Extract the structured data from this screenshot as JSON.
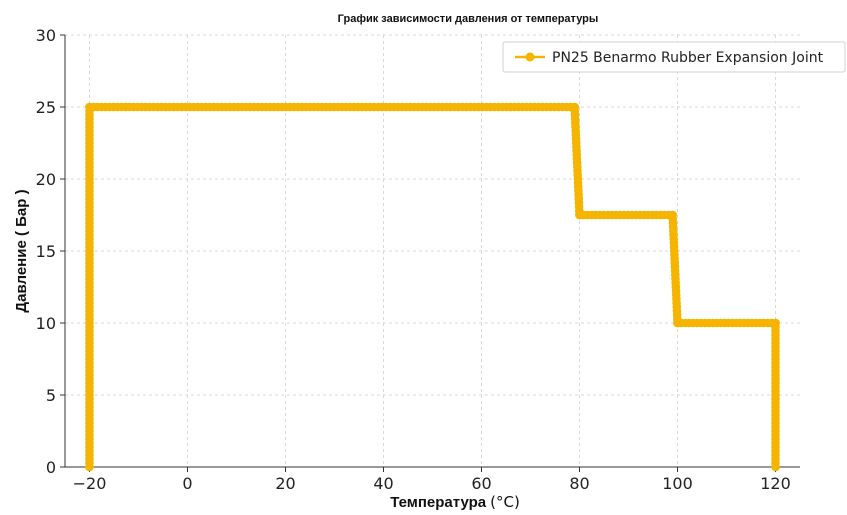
{
  "chart_data": {
    "type": "line",
    "title": "График зависимости давления от температуры",
    "xlabel": "Температура",
    "xlabel_unit": "(°C)",
    "ylabel": "Давление ( Бар )",
    "xlim": [
      -25,
      125
    ],
    "ylim": [
      0,
      30
    ],
    "xticks": [
      -20,
      0,
      20,
      40,
      60,
      80,
      100,
      120
    ],
    "yticks": [
      0,
      5,
      10,
      15,
      20,
      25,
      30
    ],
    "grid": true,
    "legend_position": "top-right",
    "series": [
      {
        "name": "PN25 Benarmo Rubber Expansion Joint",
        "color": "#f5b400",
        "marker": "circle",
        "segments": [
          {
            "from": [
              -20,
              0
            ],
            "to": [
              -20,
              25
            ]
          },
          {
            "from": [
              -20,
              25
            ],
            "to": [
              79,
              25
            ]
          },
          {
            "from": [
              79,
              25
            ],
            "to": [
              80,
              17.5
            ]
          },
          {
            "from": [
              80,
              17.5
            ],
            "to": [
              99,
              17.5
            ]
          },
          {
            "from": [
              99,
              17.5
            ],
            "to": [
              100,
              10
            ]
          },
          {
            "from": [
              100,
              10
            ],
            "to": [
              120,
              10
            ]
          },
          {
            "from": [
              120,
              10
            ],
            "to": [
              120,
              0
            ]
          }
        ]
      }
    ]
  }
}
